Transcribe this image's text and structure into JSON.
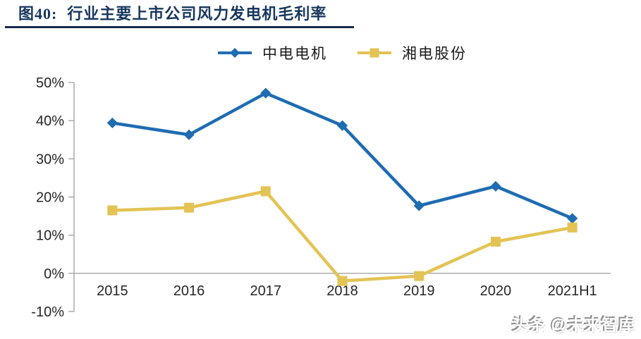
{
  "header": {
    "figure_label": "图40:",
    "title": "行业主要上市公司风力发电机毛利率"
  },
  "chart_data": {
    "type": "line",
    "title": "行业主要上市公司风力发电机毛利率",
    "categories": [
      "2015",
      "2016",
      "2017",
      "2018",
      "2019",
      "2020",
      "2021H1"
    ],
    "series": [
      {
        "name": "中电电机",
        "color": "#1E6CB2",
        "marker": "diamond",
        "values": [
          39.4,
          36.3,
          47.2,
          38.7,
          17.7,
          22.8,
          14.4
        ]
      },
      {
        "name": "湘电股份",
        "color": "#E3C354",
        "marker": "square",
        "values": [
          16.5,
          17.2,
          21.5,
          -2.0,
          -0.7,
          8.3,
          12.0
        ]
      }
    ],
    "ylim": [
      -10,
      50
    ],
    "ytick_step": 10,
    "ytick_labels": [
      "50%",
      "40%",
      "30%",
      "20%",
      "10%",
      "0%",
      "-10%"
    ],
    "unit": "%",
    "grid": "zero-baseline-only",
    "legend_position": "top-center",
    "axis_color": "#A6A6A6",
    "tick_label_color": "#262626"
  },
  "footer": {
    "watermark": "头条 @未来智库"
  }
}
